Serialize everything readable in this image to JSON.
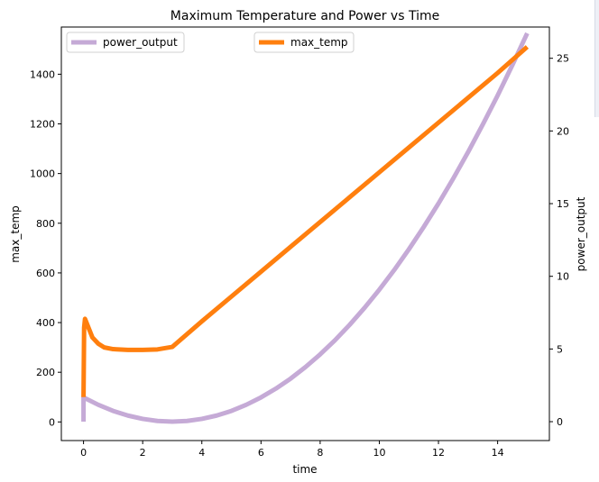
{
  "chart_data": {
    "type": "line",
    "title": "Maximum Temperature and Power vs Time",
    "xlabel": "time",
    "ylabel_left": "max_temp",
    "ylabel_right": "power_output",
    "xlim": [
      -0.75,
      15.75
    ],
    "ylim_left": [
      -75,
      1590
    ],
    "ylim_right": [
      -1.3,
      27.15
    ],
    "x_ticks": [
      0,
      2,
      4,
      6,
      8,
      10,
      12,
      14
    ],
    "y_ticks_left": [
      0,
      200,
      400,
      600,
      800,
      1000,
      1200,
      1400
    ],
    "y_ticks_right": [
      0,
      5,
      10,
      15,
      20,
      25
    ],
    "grid": false,
    "series": [
      {
        "name": "power_output",
        "axis": "right",
        "color": "#c5aad6",
        "x": [
          0,
          0,
          0.5,
          1,
          1.5,
          2,
          2.5,
          3,
          3.5,
          4,
          4.5,
          5,
          5.5,
          6,
          6.5,
          7,
          7.5,
          8,
          8.5,
          9,
          9.5,
          10,
          10.5,
          11,
          11.5,
          12,
          12.5,
          13,
          13.5,
          14,
          14.5,
          15
        ],
        "values": [
          0,
          1.67,
          1.16,
          0.74,
          0.42,
          0.19,
          0.05,
          0.0,
          0.05,
          0.19,
          0.42,
          0.74,
          1.16,
          1.67,
          2.27,
          2.96,
          3.75,
          4.63,
          5.6,
          6.67,
          7.83,
          9.08,
          10.42,
          11.86,
          13.39,
          15.01,
          16.73,
          18.54,
          20.45,
          22.44,
          24.54,
          26.72
        ]
      },
      {
        "name": "max_temp",
        "axis": "left",
        "color": "#ff7f0e",
        "x": [
          0,
          0.02,
          0.05,
          0.1,
          0.2,
          0.3,
          0.5,
          0.7,
          1,
          1.5,
          2,
          2.5,
          3,
          4,
          5,
          6,
          7,
          8,
          9,
          10,
          11,
          12,
          13,
          14,
          15
        ],
        "values": [
          100,
          380,
          415,
          400,
          370,
          340,
          315,
          300,
          293,
          290,
          290,
          292,
          302,
          405,
          505,
          605,
          705,
          805,
          905,
          1005,
          1105,
          1205,
          1305,
          1405,
          1510
        ]
      }
    ],
    "legend": [
      {
        "label": "power_output",
        "color": "#c5aad6",
        "placement": "upper-left"
      },
      {
        "label": "max_temp",
        "color": "#ff7f0e",
        "placement": "upper-center"
      }
    ]
  }
}
